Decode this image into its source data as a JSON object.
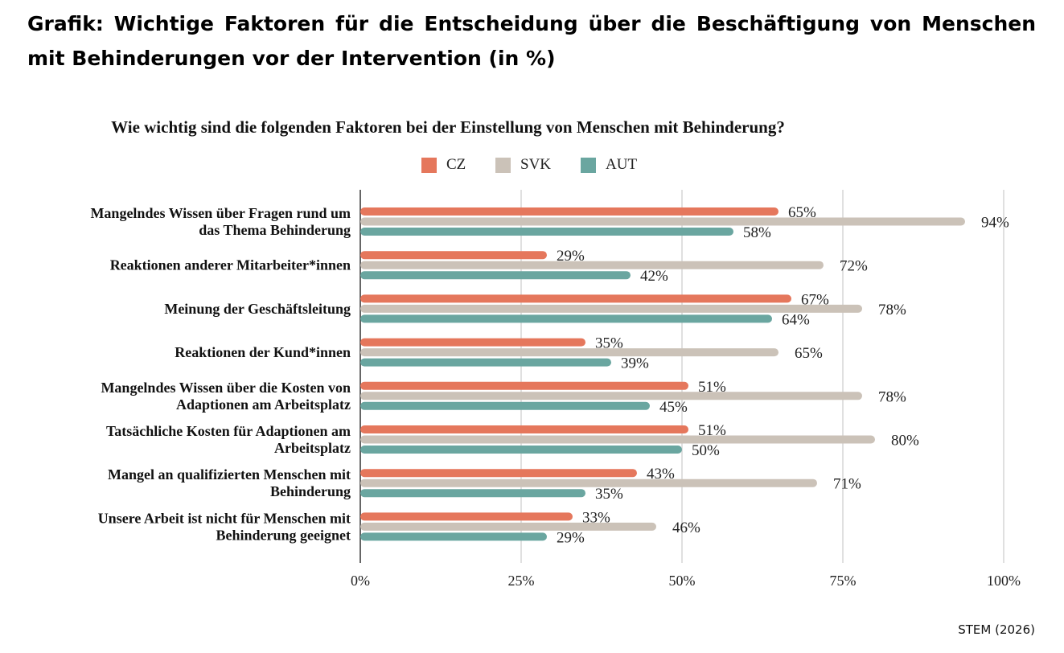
{
  "page": {
    "title": "Grafik: Wichtige Faktoren für die Entscheidung über die Beschäftigung von Menschen mit Behinderungen vor der Intervention (in %)",
    "source": "STEM (2026)"
  },
  "colors": {
    "CZ": "#e5775c",
    "SVK": "#cbc2b8",
    "AUT": "#6aa6a0"
  },
  "chart_data": {
    "type": "bar",
    "orientation": "horizontal",
    "title": "Wie wichtig sind die folgenden Faktoren bei der Einstellung von Menschen mit Behinderung?",
    "xlabel": "",
    "ylabel": "",
    "xlim": [
      0,
      100
    ],
    "grid": true,
    "legend_position": "top",
    "tick_labels": [
      "0%",
      "25%",
      "50%",
      "75%",
      "100%"
    ],
    "tick_values": [
      0,
      25,
      50,
      75,
      100
    ],
    "categories": [
      [
        "Mangelndes Wissen über Fragen rund um",
        "das Thema Behinderung"
      ],
      [
        "Reaktionen anderer Mitarbeiter*innen"
      ],
      [
        "Meinung der Geschäftsleitung"
      ],
      [
        "Reaktionen der Kund*innen"
      ],
      [
        "Mangelndes Wissen über die Kosten von",
        "Adaptionen am Arbeitsplatz"
      ],
      [
        "Tatsächliche Kosten für Adaptionen am",
        "Arbeitsplatz"
      ],
      [
        "Mangel an qualifizierten Menschen mit",
        "Behinderung"
      ],
      [
        "Unsere Arbeit ist nicht für Menschen mit",
        "Behinderung geeignet"
      ]
    ],
    "series": [
      {
        "name": "CZ",
        "values": [
          65,
          29,
          67,
          35,
          51,
          51,
          43,
          33
        ]
      },
      {
        "name": "SVK",
        "values": [
          94,
          72,
          78,
          65,
          78,
          80,
          71,
          46
        ]
      },
      {
        "name": "AUT",
        "values": [
          58,
          42,
          64,
          39,
          45,
          50,
          35,
          29
        ]
      }
    ]
  }
}
